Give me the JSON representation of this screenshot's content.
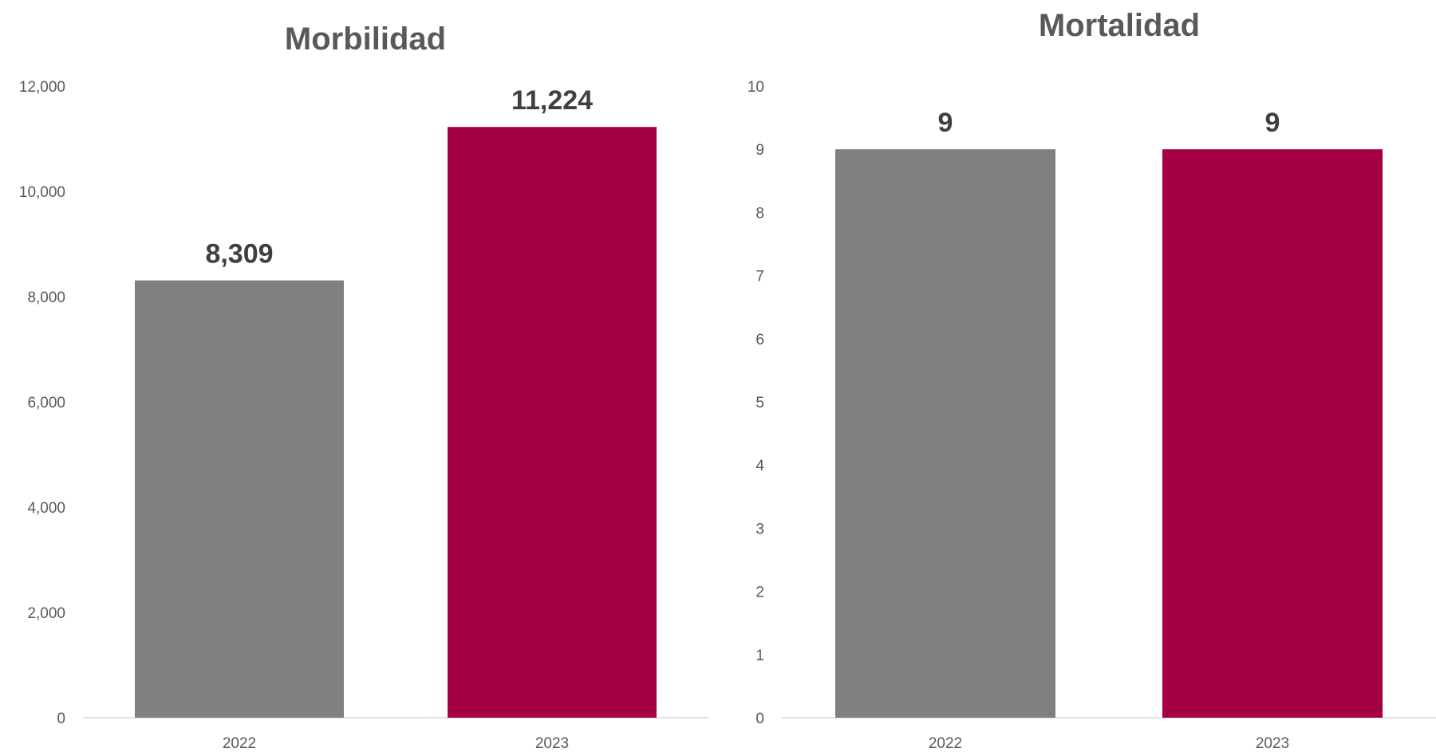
{
  "chart_data": [
    {
      "type": "bar",
      "title": "Morbilidad",
      "categories": [
        "2022",
        "2023"
      ],
      "values": [
        8309,
        11224
      ],
      "data_labels": [
        "8,309",
        "11,224"
      ],
      "colors": [
        "#808080",
        "#a50044"
      ],
      "ylim": [
        0,
        12000
      ],
      "yticks": [
        0,
        2000,
        4000,
        6000,
        8000,
        10000,
        12000
      ],
      "ytick_labels": [
        "0",
        "2,000",
        "4,000",
        "6,000",
        "8,000",
        "10,000",
        "12,000"
      ],
      "xlabel": "",
      "ylabel": "",
      "grid": false,
      "legend": "none"
    },
    {
      "type": "bar",
      "title": "Mortalidad",
      "categories": [
        "2022",
        "2023"
      ],
      "values": [
        9,
        9
      ],
      "data_labels": [
        "9",
        "9"
      ],
      "colors": [
        "#808080",
        "#a50044"
      ],
      "ylim": [
        0,
        10
      ],
      "yticks": [
        0,
        1,
        2,
        3,
        4,
        5,
        6,
        7,
        8,
        9,
        10
      ],
      "ytick_labels": [
        "0",
        "1",
        "2",
        "3",
        "4",
        "5",
        "6",
        "7",
        "8",
        "9",
        "10"
      ],
      "xlabel": "",
      "ylabel": "",
      "grid": false,
      "legend": "none"
    }
  ]
}
